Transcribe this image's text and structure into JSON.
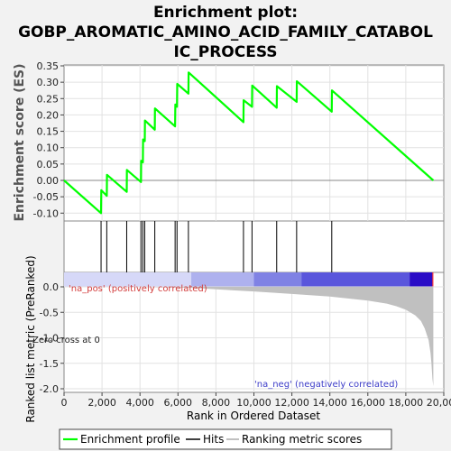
{
  "chart_data": {
    "type": "line",
    "title_lines": [
      "Enrichment plot:",
      "GOBP_AROMATIC_AMINO_ACID_FAMILY_CATABOL",
      "IC_PROCESS"
    ],
    "xlabel": "Rank in Ordered Dataset",
    "ylabel_top": "Enrichment score (ES)",
    "ylabel_bottom": "Ranked list metric (PreRanked)",
    "xlim": [
      0,
      20000
    ],
    "x_ticks": [
      0,
      2000,
      4000,
      6000,
      8000,
      10000,
      12000,
      14000,
      16000,
      18000,
      20000
    ],
    "x_tick_labels": [
      "0",
      "2,000",
      "4,000",
      "6,000",
      "8,000",
      "10,000",
      "12,000",
      "14,000",
      "16,000",
      "18,000",
      "20,000"
    ],
    "es_ylim": [
      -0.12,
      0.35
    ],
    "es_ticks": [
      -0.1,
      -0.05,
      0.0,
      0.05,
      0.1,
      0.15,
      0.2,
      0.25,
      0.3,
      0.35
    ],
    "es_tick_labels": [
      "-0.10",
      "-0.05",
      "0.00",
      "0.05",
      "0.10",
      "0.15",
      "0.20",
      "0.25",
      "0.30",
      "0.35"
    ],
    "metric_ylim": [
      -2.0,
      0.0
    ],
    "metric_ticks": [
      0.0,
      -0.5,
      -1.0,
      -1.5,
      -2.0
    ],
    "metric_tick_labels": [
      "0.0",
      "-0.5",
      "-1.0",
      "-1.5",
      "-2.0"
    ],
    "grid": true,
    "legend_position": "bottom",
    "series": [
      {
        "name": "Enrichment profile",
        "color": "#00ff00",
        "x": [
          0,
          1950,
          1960,
          2250,
          2260,
          3300,
          3310,
          4050,
          4060,
          4150,
          4160,
          4250,
          4260,
          4780,
          4790,
          5850,
          5860,
          5950,
          5960,
          6550,
          6560,
          9450,
          9460,
          9900,
          9910,
          11200,
          11210,
          12250,
          12260,
          14100,
          14110,
          19450
        ],
        "y": [
          0.0,
          -0.1,
          -0.03,
          -0.047,
          0.017,
          -0.035,
          0.032,
          -0.005,
          0.06,
          0.055,
          0.125,
          0.12,
          0.183,
          0.155,
          0.22,
          0.165,
          0.232,
          0.225,
          0.295,
          0.265,
          0.33,
          0.178,
          0.245,
          0.225,
          0.29,
          0.222,
          0.288,
          0.24,
          0.303,
          0.21,
          0.275,
          0.0
        ]
      },
      {
        "name": "Hits",
        "color": "#000000",
        "positions": [
          1950,
          2250,
          3300,
          4050,
          4150,
          4250,
          4780,
          5850,
          5950,
          6550,
          9450,
          9900,
          11200,
          12250,
          14100
        ]
      },
      {
        "name": "Ranking metric scores",
        "color": "#c0c0c0",
        "x": [
          0,
          4000,
          6800,
          8000,
          10000,
          12000,
          14000,
          16000,
          17000,
          17500,
          18000,
          18500,
          18800,
          19000,
          19200,
          19300,
          19350,
          19400,
          19450
        ],
        "y": [
          0.0,
          0.0,
          -0.02,
          -0.05,
          -0.09,
          -0.14,
          -0.19,
          -0.27,
          -0.33,
          -0.38,
          -0.45,
          -0.56,
          -0.67,
          -0.82,
          -1.05,
          -1.3,
          -1.5,
          -1.8,
          -1.95
        ]
      }
    ],
    "annotations": {
      "pos_label": "'na_pos' (positively correlated)",
      "neg_label": "'na_neg' (negatively correlated)",
      "zero_label": "Zero cross at 0"
    },
    "colorbar": {
      "segments": [
        {
          "from": 0,
          "to": 6700,
          "color": "#d6d8f8"
        },
        {
          "from": 6700,
          "to": 10000,
          "color": "#aeb1ee"
        },
        {
          "from": 10000,
          "to": 12500,
          "color": "#8082e4"
        },
        {
          "from": 12500,
          "to": 18200,
          "color": "#5a56dc"
        },
        {
          "from": 18200,
          "to": 19400,
          "color": "#2a0cc6"
        },
        {
          "from": 19400,
          "to": 19450,
          "color": "#ff2020"
        }
      ]
    }
  }
}
